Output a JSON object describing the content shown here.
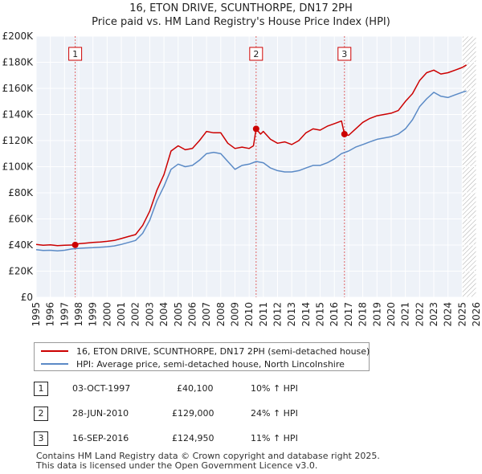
{
  "chart_data": {
    "type": "line",
    "title": "16, ETON DRIVE, SCUNTHORPE, DN17 2PH",
    "subtitle": "Price paid vs. HM Land Registry's House Price Index (HPI)",
    "xlabel": "",
    "ylabel": "",
    "xlim": [
      1995,
      2026
    ],
    "ylim": [
      0,
      200000
    ],
    "y_ticks": [
      0,
      20000,
      40000,
      60000,
      80000,
      100000,
      120000,
      140000,
      160000,
      180000,
      200000
    ],
    "y_tick_labels": [
      "£0",
      "£20K",
      "£40K",
      "£60K",
      "£80K",
      "£100K",
      "£120K",
      "£140K",
      "£160K",
      "£180K",
      "£200K"
    ],
    "x_tick_labels": [
      "1995",
      "1996",
      "1997",
      "1998",
      "1999",
      "2000",
      "2001",
      "2002",
      "2003",
      "2004",
      "2005",
      "2006",
      "2007",
      "2008",
      "2009",
      "2010",
      "2011",
      "2012",
      "2013",
      "2014",
      "2015",
      "2016",
      "2017",
      "2018",
      "2019",
      "2020",
      "2021",
      "2022",
      "2023",
      "2024",
      "2025",
      "2026"
    ],
    "grid": true,
    "forecast_hatch_from": 2025.0,
    "series": [
      {
        "name": "16, ETON DRIVE, SCUNTHORPE, DN17 2PH (semi-detached house)",
        "color": "#cc0000",
        "x": [
          1995.0,
          1995.5,
          1996.0,
          1996.5,
          1997.0,
          1997.5,
          1997.75,
          1998.0,
          1998.5,
          1999.0,
          1999.5,
          2000.0,
          2000.5,
          2001.0,
          2001.5,
          2002.0,
          2002.5,
          2003.0,
          2003.5,
          2004.0,
          2004.5,
          2005.0,
          2005.5,
          2006.0,
          2006.5,
          2007.0,
          2007.5,
          2008.0,
          2008.5,
          2009.0,
          2009.5,
          2010.0,
          2010.3,
          2010.49,
          2010.8,
          2011.0,
          2011.5,
          2012.0,
          2012.5,
          2013.0,
          2013.5,
          2014.0,
          2014.5,
          2015.0,
          2015.5,
          2016.0,
          2016.5,
          2016.71,
          2017.0,
          2017.5,
          2018.0,
          2018.5,
          2019.0,
          2019.5,
          2020.0,
          2020.5,
          2021.0,
          2021.5,
          2022.0,
          2022.5,
          2023.0,
          2023.5,
          2024.0,
          2024.5,
          2025.0,
          2025.3
        ],
        "values": [
          40500,
          39800,
          40200,
          39500,
          39800,
          40000,
          40100,
          41000,
          41500,
          42000,
          42300,
          42800,
          43500,
          45000,
          46500,
          48000,
          55000,
          66000,
          82000,
          94000,
          112000,
          116000,
          113000,
          114000,
          120000,
          127000,
          126000,
          126000,
          118000,
          114000,
          115000,
          114000,
          116000,
          129000,
          125000,
          127000,
          121000,
          118000,
          119000,
          117000,
          120000,
          126000,
          129000,
          128000,
          131000,
          133000,
          135000,
          124950,
          124000,
          129000,
          134000,
          137000,
          139000,
          140000,
          141000,
          143000,
          150000,
          156000,
          166000,
          172000,
          174000,
          171000,
          172000,
          174000,
          176000,
          178000
        ]
      },
      {
        "name": "HPI: Average price, semi-detached house, North Lincolnshire",
        "color": "#5b8ac6",
        "x": [
          1995.0,
          1995.5,
          1996.0,
          1996.5,
          1997.0,
          1997.5,
          1998.0,
          1998.5,
          1999.0,
          1999.5,
          2000.0,
          2000.5,
          2001.0,
          2001.5,
          2002.0,
          2002.5,
          2003.0,
          2003.5,
          2004.0,
          2004.5,
          2005.0,
          2005.5,
          2006.0,
          2006.5,
          2007.0,
          2007.5,
          2008.0,
          2008.5,
          2009.0,
          2009.5,
          2010.0,
          2010.5,
          2011.0,
          2011.5,
          2012.0,
          2012.5,
          2013.0,
          2013.5,
          2014.0,
          2014.5,
          2015.0,
          2015.5,
          2016.0,
          2016.5,
          2017.0,
          2017.5,
          2018.0,
          2018.5,
          2019.0,
          2019.5,
          2020.0,
          2020.5,
          2021.0,
          2021.5,
          2022.0,
          2022.5,
          2023.0,
          2023.5,
          2024.0,
          2024.5,
          2025.0,
          2025.3
        ],
        "values": [
          36500,
          35800,
          36000,
          35500,
          36000,
          37000,
          37500,
          37800,
          38000,
          38300,
          38700,
          39300,
          40500,
          42000,
          43500,
          49000,
          59000,
          74000,
          85000,
          98000,
          102000,
          100000,
          101000,
          105000,
          110000,
          111000,
          110000,
          104000,
          98000,
          101000,
          102000,
          104000,
          103000,
          99000,
          97000,
          96000,
          96000,
          97000,
          99000,
          101000,
          101000,
          103000,
          106000,
          110000,
          112000,
          115000,
          117000,
          119000,
          121000,
          122000,
          123000,
          125000,
          129000,
          136000,
          146000,
          152000,
          157000,
          154000,
          153000,
          155000,
          157000,
          158000
        ]
      }
    ],
    "sales": [
      {
        "id": "1",
        "x": 1997.75,
        "value": 40100
      },
      {
        "id": "2",
        "x": 2010.49,
        "value": 129000
      },
      {
        "id": "3",
        "x": 2016.71,
        "value": 124950
      }
    ]
  },
  "legend": {
    "property_label": "16, ETON DRIVE, SCUNTHORPE, DN17 2PH (semi-detached house)",
    "hpi_label": "HPI: Average price, semi-detached house, North Lincolnshire"
  },
  "transactions": [
    {
      "id": "1",
      "date": "03-OCT-1997",
      "price": "£40,100",
      "hpi": "10% ↑ HPI"
    },
    {
      "id": "2",
      "date": "28-JUN-2010",
      "price": "£129,000",
      "hpi": "24% ↑ HPI"
    },
    {
      "id": "3",
      "date": "16-SEP-2016",
      "price": "£124,950",
      "hpi": "11% ↑ HPI"
    }
  ],
  "footer": {
    "line1": "Contains HM Land Registry data © Crown copyright and database right 2025.",
    "line2": "This data is licensed under the Open Government Licence v3.0."
  }
}
